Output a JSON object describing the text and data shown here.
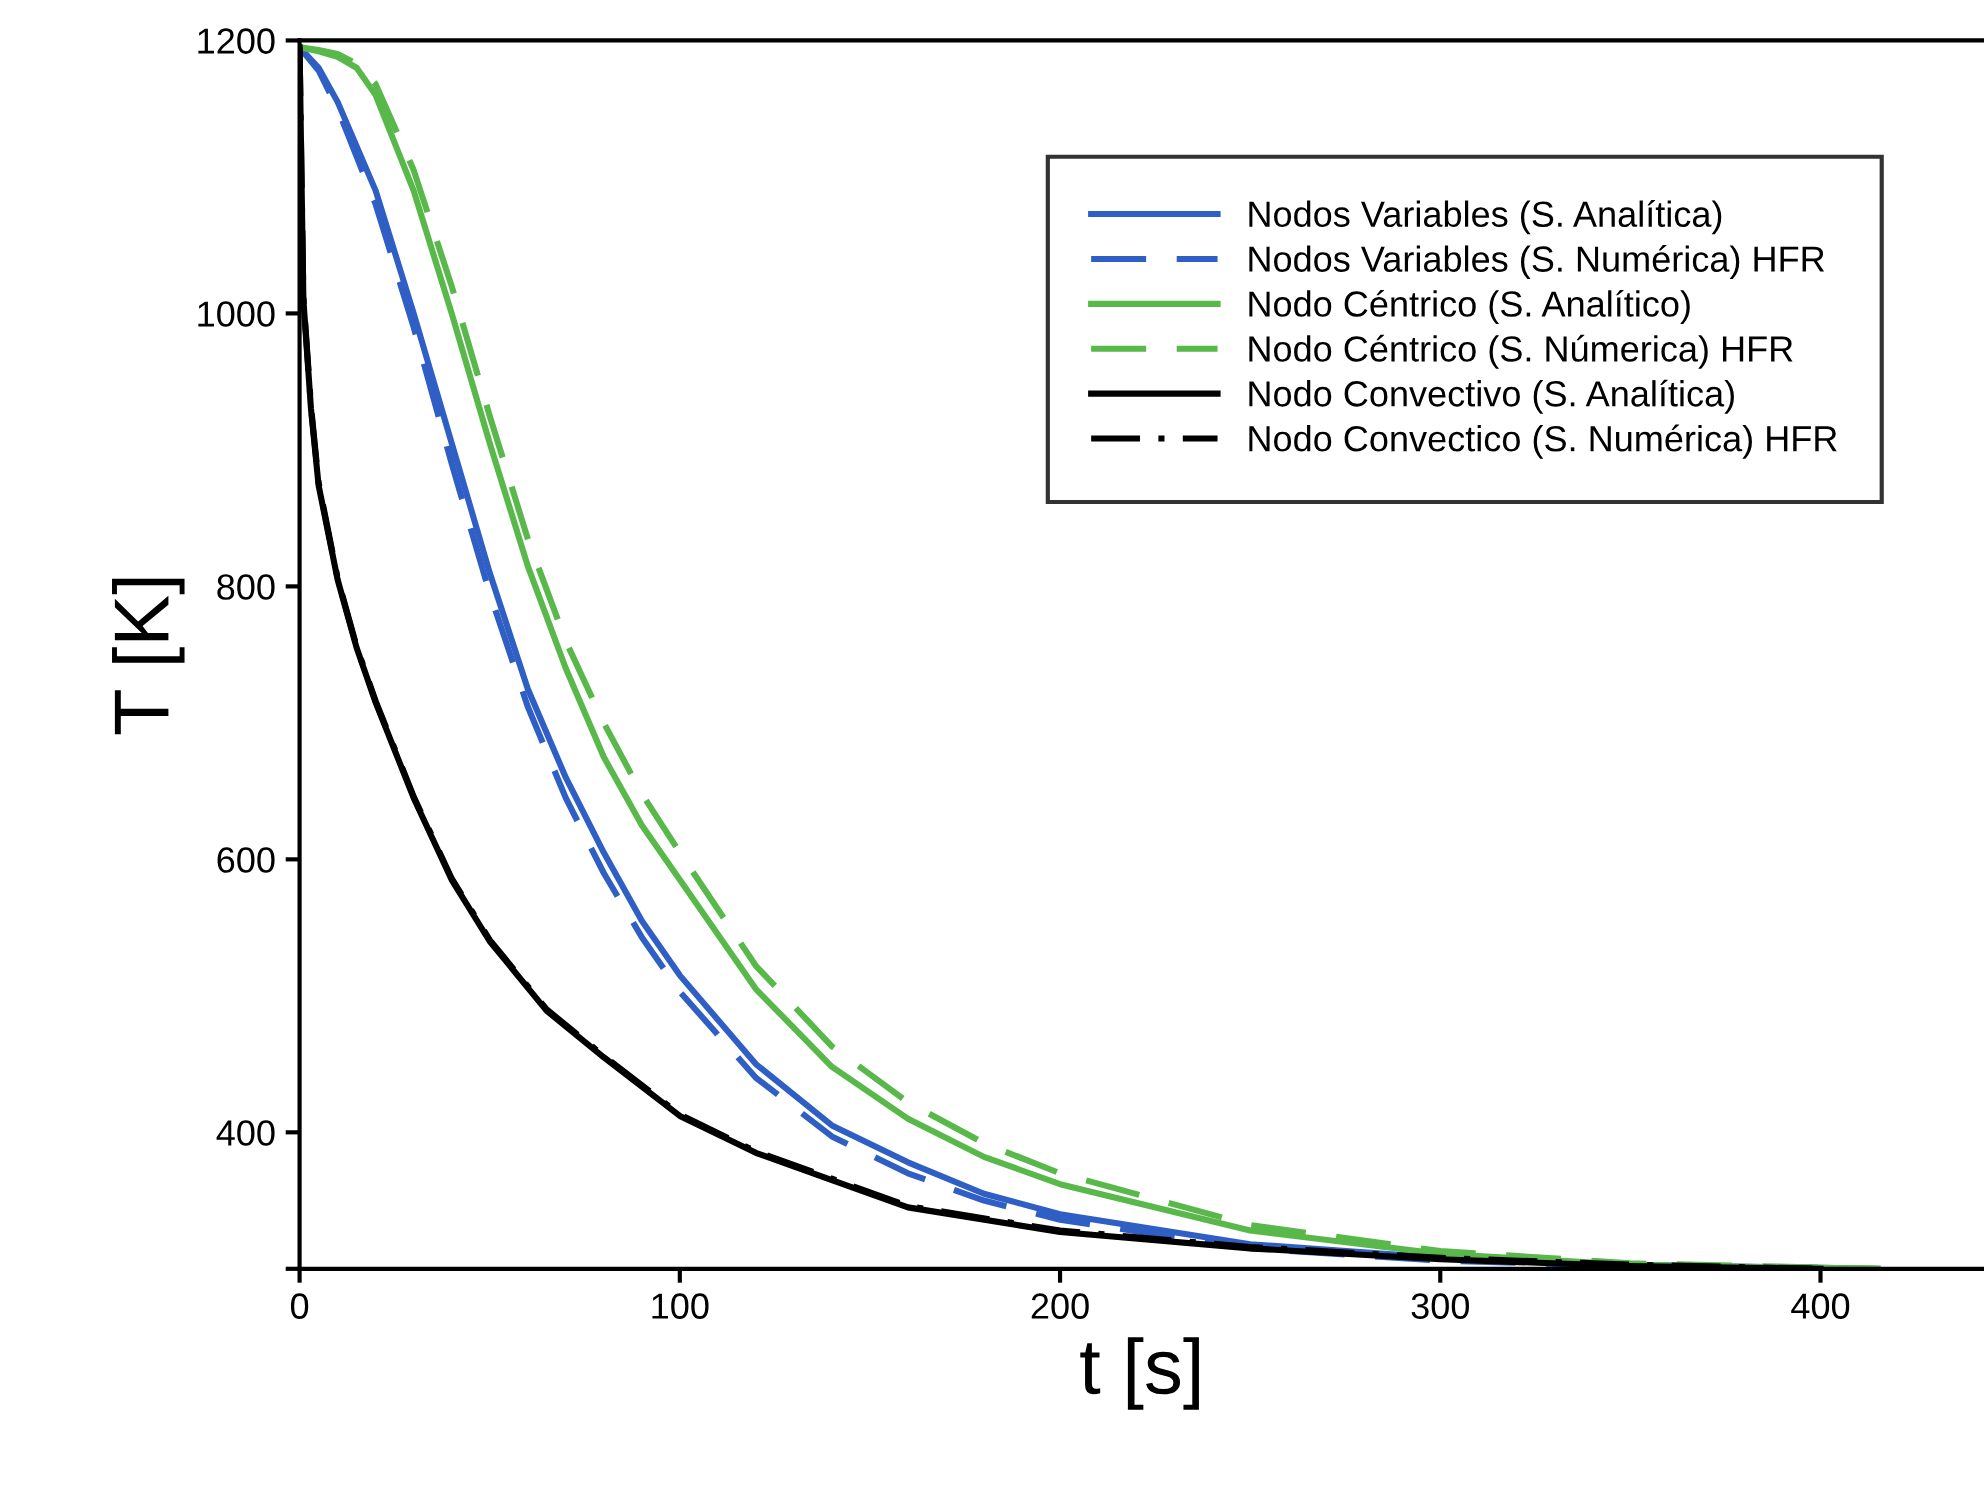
{
  "chart_data": {
    "type": "line",
    "xlabel": "t [s]",
    "ylabel": "T [K]",
    "xlim": [
      0,
      443
    ],
    "ylim": [
      300,
      1200
    ],
    "xticks": [
      0,
      100,
      200,
      300,
      400
    ],
    "yticks": [
      {
        "value": 300,
        "label": null
      },
      400,
      600,
      800,
      1000,
      1200
    ],
    "grid": false,
    "legend": "top right",
    "marker": "none",
    "series": [
      {
        "name": "Nodos Variables (S. Analítica)",
        "color": "#2f5fc4",
        "line_style": "solid",
        "x": [
          0,
          5,
          10,
          20,
          30,
          40,
          50,
          60,
          70,
          80,
          90,
          100,
          120,
          140,
          160,
          180,
          200,
          250,
          300,
          350,
          415
        ],
        "values": [
          1195,
          1180,
          1155,
          1090,
          1000,
          905,
          810,
          725,
          660,
          605,
          555,
          515,
          450,
          405,
          378,
          355,
          340,
          318,
          308,
          303,
          300
        ]
      },
      {
        "name": "Nodos Variables (S. Numérica) HFR",
        "color": "#2f5fc4",
        "line_style": "dashed",
        "x": [
          0,
          5,
          10,
          20,
          30,
          40,
          50,
          60,
          70,
          80,
          90,
          100,
          120,
          140,
          160,
          180,
          200,
          250,
          300,
          350,
          415
        ],
        "values": [
          1195,
          1178,
          1150,
          1080,
          990,
          890,
          795,
          712,
          645,
          590,
          543,
          503,
          440,
          397,
          370,
          350,
          336,
          315,
          306,
          302,
          300
        ]
      },
      {
        "name": "Nodo Céntrico (S. Analítico)",
        "color": "#58b84a",
        "line_style": "solid",
        "x": [
          0,
          5,
          10,
          15,
          20,
          30,
          40,
          50,
          60,
          70,
          80,
          90,
          100,
          120,
          140,
          160,
          180,
          200,
          250,
          300,
          350,
          415
        ],
        "values": [
          1195,
          1192,
          1188,
          1180,
          1160,
          1090,
          1000,
          905,
          815,
          740,
          675,
          625,
          585,
          505,
          448,
          410,
          382,
          362,
          328,
          311,
          303,
          300
        ]
      },
      {
        "name": "Nodo Céntrico (S. Númerica) HFR",
        "color": "#58b84a",
        "line_style": "dashed",
        "x": [
          0,
          5,
          10,
          15,
          20,
          30,
          40,
          50,
          60,
          70,
          80,
          90,
          100,
          120,
          140,
          160,
          180,
          200,
          250,
          300,
          350,
          415
        ],
        "values": [
          1195,
          1193,
          1190,
          1183,
          1168,
          1105,
          1020,
          925,
          835,
          760,
          700,
          648,
          605,
          522,
          463,
          422,
          392,
          370,
          332,
          313,
          304,
          300
        ]
      },
      {
        "name": "Nodo Convectivo (S. Analítica)",
        "color": "#000000",
        "line_style": "solid",
        "x": [
          0,
          0.5,
          1,
          3,
          5,
          10,
          15,
          20,
          30,
          40,
          50,
          65,
          80,
          100,
          120,
          140,
          160,
          200,
          250,
          300,
          350,
          400
        ],
        "values": [
          1195,
          1100,
          1010,
          930,
          874,
          805,
          755,
          715,
          645,
          585,
          540,
          489,
          455,
          412,
          385,
          365,
          345,
          327,
          315,
          307,
          302,
          300
        ]
      },
      {
        "name": "Nodo Convectico (S. Numérica) HFR",
        "color": "#000000",
        "line_style": "dashdot",
        "x": [
          0,
          0.5,
          1,
          3,
          5,
          10,
          15,
          20,
          30,
          40,
          50,
          65,
          80,
          100,
          120,
          140,
          160,
          200,
          250,
          300,
          350,
          400
        ],
        "values": [
          1195,
          1102,
          1012,
          932,
          876,
          806,
          756,
          716,
          646,
          586,
          541,
          490,
          456,
          413,
          386,
          366,
          346,
          328,
          316,
          308,
          303,
          300
        ]
      }
    ]
  }
}
